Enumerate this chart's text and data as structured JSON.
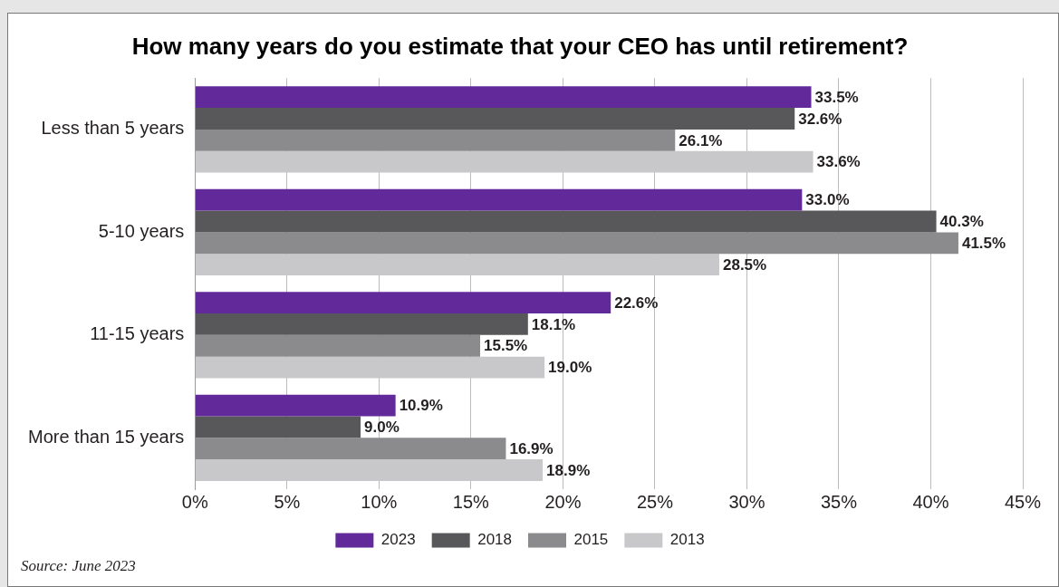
{
  "chart_data": {
    "type": "bar",
    "orientation": "horizontal",
    "title": "How many years do you estimate that your CEO has until retirement?",
    "categories": [
      "Less than 5 years",
      "5-10 years",
      "11-15 years",
      "More than 15 years"
    ],
    "series": [
      {
        "name": "2023",
        "color": "#62299a",
        "values": [
          33.5,
          33.0,
          22.6,
          10.9
        ],
        "value_labels": [
          "33.5%",
          "33.0%",
          "22.6%",
          "10.9%"
        ]
      },
      {
        "name": "2018",
        "color": "#58585a",
        "values": [
          32.6,
          40.3,
          18.1,
          9.0
        ],
        "value_labels": [
          "32.6%",
          "40.3%",
          "18.1%",
          "9.0%"
        ]
      },
      {
        "name": "2015",
        "color": "#8b8b8d",
        "values": [
          26.1,
          41.5,
          15.5,
          16.9
        ],
        "value_labels": [
          "26.1%",
          "41.5%",
          "15.5%",
          "16.9%"
        ]
      },
      {
        "name": "2013",
        "color": "#c8c8ca",
        "values": [
          33.6,
          28.5,
          19.0,
          18.9
        ],
        "value_labels": [
          "33.6%",
          "28.5%",
          "19.0%",
          "18.9%"
        ]
      }
    ],
    "xlim": [
      0,
      45
    ],
    "xticks": [
      {
        "value": 0,
        "label": "0%"
      },
      {
        "value": 5,
        "label": "5%"
      },
      {
        "value": 10,
        "label": "10%"
      },
      {
        "value": 15,
        "label": "15%"
      },
      {
        "value": 20,
        "label": "20%"
      },
      {
        "value": 25,
        "label": "25%"
      },
      {
        "value": 30,
        "label": "30%"
      },
      {
        "value": 35,
        "label": "35%"
      },
      {
        "value": 40,
        "label": "40%"
      },
      {
        "value": 45,
        "label": "45%"
      }
    ],
    "grid": "x",
    "legend": "bottom",
    "annotations": [
      "Source: June 2023"
    ]
  }
}
